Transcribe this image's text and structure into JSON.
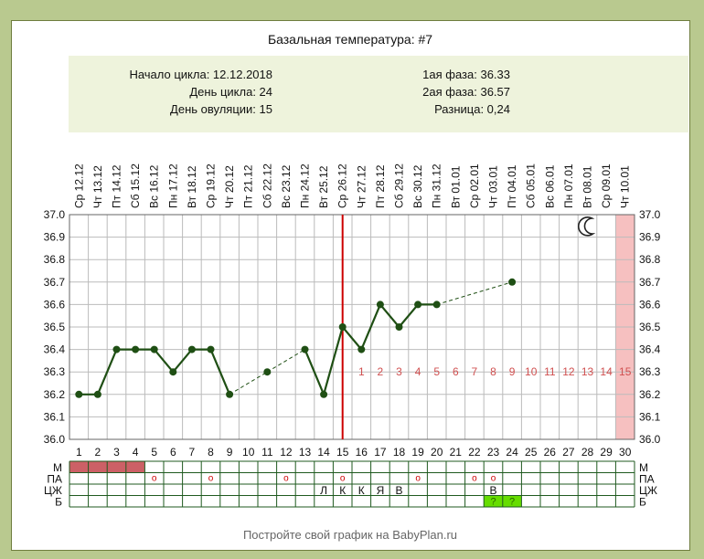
{
  "chart_data": {
    "type": "line",
    "title": "Базальная температура: #7",
    "info_left": [
      {
        "label": "Начало цикла:",
        "value": "12.12.2018"
      },
      {
        "label": "День цикла:",
        "value": "24"
      },
      {
        "label": "День овуляции:",
        "value": "15"
      }
    ],
    "info_right": [
      {
        "label": "1ая фаза:",
        "value": "36.33"
      },
      {
        "label": "2ая фаза:",
        "value": "36.57"
      },
      {
        "label": "Разница:",
        "value": "0,24"
      }
    ],
    "dates": [
      "Ср 12.12",
      "Чт 13.12",
      "Пт 14.12",
      "Сб 15.12",
      "Вс 16.12",
      "Пн 17.12",
      "Вт 18.12",
      "Ср 19.12",
      "Чт 20.12",
      "Пт 21.12",
      "Сб 22.12",
      "Вс 23.12",
      "Пн 24.12",
      "Вт 25.12",
      "Ср 26.12",
      "Чт 27.12",
      "Пт 28.12",
      "Сб 29.12",
      "Вс 30.12",
      "Пн 31.12",
      "Вт 01.01",
      "Ср 02.01",
      "Чт 03.01",
      "Пт 04.01",
      "Сб 05.01",
      "Вс 06.01",
      "Пн 07.01",
      "Вт 08.01",
      "Ср 09.01",
      "Чт 10.01"
    ],
    "days": [
      "1",
      "2",
      "3",
      "4",
      "5",
      "6",
      "7",
      "8",
      "9",
      "10",
      "11",
      "12",
      "13",
      "14",
      "15",
      "16",
      "17",
      "18",
      "19",
      "20",
      "21",
      "22",
      "23",
      "24",
      "25",
      "26",
      "27",
      "28",
      "29",
      "30"
    ],
    "ylim": [
      36.0,
      37.0
    ],
    "yticks": [
      "37.0",
      "36.9",
      "36.8",
      "36.7",
      "36.6",
      "36.5",
      "36.4",
      "36.3",
      "36.2",
      "36.1",
      "36.0"
    ],
    "temperatures": [
      36.2,
      36.2,
      36.4,
      36.4,
      36.4,
      36.3,
      36.4,
      36.4,
      36.2,
      null,
      36.3,
      null,
      36.4,
      36.2,
      36.5,
      36.4,
      36.6,
      36.5,
      36.6,
      36.6,
      null,
      null,
      null,
      36.7,
      null,
      null,
      null,
      null,
      null,
      null
    ],
    "ovulation_day": 15,
    "luteal_labels": [
      "1",
      "2",
      "3",
      "4",
      "5",
      "6",
      "7",
      "8",
      "9",
      "10",
      "11",
      "12",
      "13",
      "14",
      "15"
    ],
    "moon_day": 28,
    "expected_period_day": 30,
    "grid": true,
    "rows": [
      {
        "label": "М",
        "marked_days": [
          1,
          2,
          3,
          4
        ]
      },
      {
        "label": "ПА",
        "symbol": "о",
        "days": [
          5,
          8,
          12,
          15,
          19,
          22,
          23
        ]
      },
      {
        "label": "ЦЖ",
        "cells": [
          {
            "day": 14,
            "text": "Л"
          },
          {
            "day": 15,
            "text": "К"
          },
          {
            "day": 16,
            "text": "К"
          },
          {
            "day": 17,
            "text": "Я"
          },
          {
            "day": 18,
            "text": "В"
          },
          {
            "day": 23,
            "text": "В"
          }
        ]
      },
      {
        "label": "Б",
        "cells": [
          {
            "day": 23,
            "text": "?"
          },
          {
            "day": 24,
            "text": "?"
          }
        ]
      }
    ],
    "colors": {
      "line": "#1f4f14",
      "ovulation": "#cc0000",
      "period": "#cc6066",
      "luteal_text": "#d05050",
      "band": "#f5f9e6",
      "expected": "#f6c0c0",
      "test": "#66dd00"
    }
  },
  "footer": "Постройте свой график на BabyPlan.ru",
  "icons": {
    "moon": "moon-icon"
  }
}
